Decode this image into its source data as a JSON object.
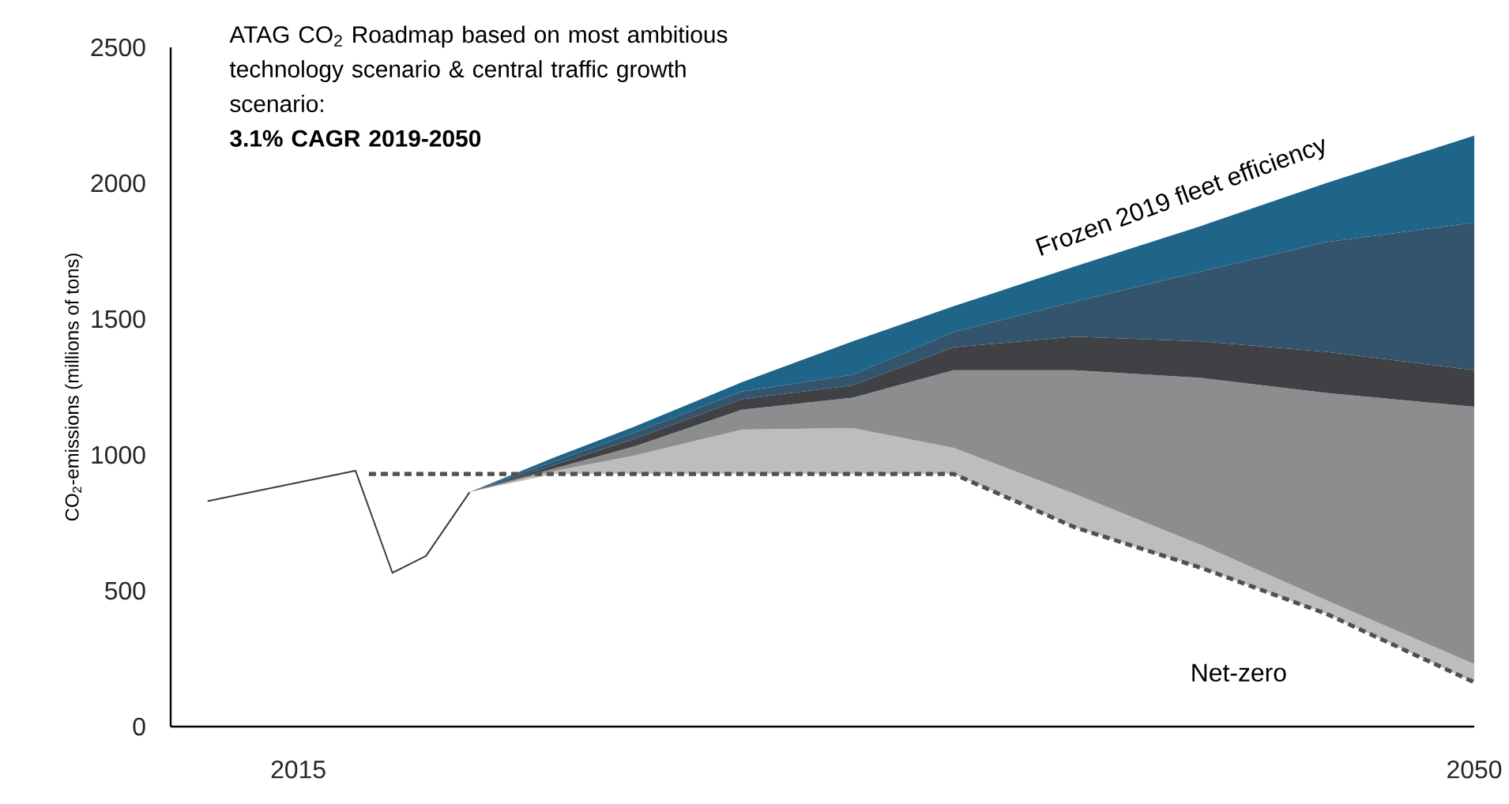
{
  "chart_data": {
    "type": "area",
    "title": "ATAG CO$_{2}$ Roadmap based on most ambitious technology scenario & central traffic growth scenario:",
    "subtitle": "3.1% CAGR 2019-2050",
    "ylabel": "CO$_{2}$-emissions (millions of tons)",
    "xlim": [
      2011.2,
      2050
    ],
    "xticks": [
      2015,
      2050
    ],
    "ylim": [
      0,
      2500
    ],
    "yticks": [
      0,
      500,
      1000,
      1500,
      2000,
      2500
    ],
    "series": [
      {
        "type": "line",
        "color": "#3c3c3c",
        "line_style": "solid",
        "x": [
          2012.3,
          2016.7,
          2017.8,
          2018.8,
          2020.1
        ],
        "values": [
          830,
          942,
          566,
          628,
          863
        ]
      },
      {
        "type": "line",
        "name": "Net-zero",
        "color": "#505050",
        "line_style": "dashed",
        "x": [
          2017.1,
          2022.6,
          2025.0,
          2028.2,
          2031.5,
          2034.5,
          2038.1,
          2041.9,
          2045.6,
          2050
        ],
        "values": [
          930,
          930,
          930,
          930,
          930,
          930,
          734,
          583,
          415,
          163
        ]
      },
      {
        "color": "#bdbdbd",
        "x": [
          2020.1,
          2022.6,
          2025.0,
          2028.2,
          2031.5,
          2034.5,
          2038.1,
          2041.9,
          2045.6,
          2050
        ],
        "values": [
          863,
          940,
          998,
          1093,
          1099,
          1026,
          857,
          667,
          465,
          230
        ]
      },
      {
        "color": "#8c8d8f",
        "x": [
          2020.1,
          2022.6,
          2025.0,
          2028.2,
          2031.5,
          2034.5,
          2038.1,
          2041.9,
          2045.6,
          2050
        ],
        "values": [
          863,
          950,
          1031,
          1166,
          1211,
          1312,
          1312,
          1283,
          1228,
          1177
        ]
      },
      {
        "color": "#404145",
        "x": [
          2020.1,
          2022.6,
          2025.0,
          2028.2,
          2031.5,
          2034.5,
          2038.1,
          2041.9,
          2045.6,
          2050
        ],
        "values": [
          863,
          962,
          1059,
          1205,
          1256,
          1396,
          1435,
          1418,
          1379,
          1312
        ]
      },
      {
        "color": "#33546c",
        "x": [
          2020.1,
          2022.6,
          2025.0,
          2028.2,
          2031.5,
          2034.5,
          2038.1,
          2041.9,
          2045.6,
          2050
        ],
        "values": [
          863,
          975,
          1082,
          1233,
          1295,
          1452,
          1564,
          1676,
          1783,
          1855
        ]
      },
      {
        "name": "Frozen 2019 fleet efficiency",
        "color": "#1f6489",
        "x": [
          2020.1,
          2022.6,
          2025.0,
          2028.2,
          2031.5,
          2034.5,
          2038.1,
          2041.9,
          2045.6,
          2050
        ],
        "values": [
          863,
          990,
          1104,
          1267,
          1418,
          1547,
          1693,
          1844,
          2001,
          2175
        ]
      }
    ]
  }
}
